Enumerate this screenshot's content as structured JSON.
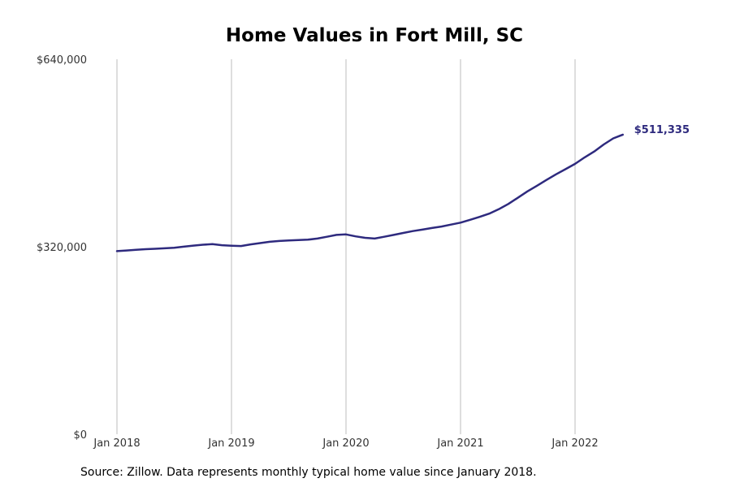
{
  "chart_data": {
    "type": "line",
    "title": "Home Values in Fort Mill, SC",
    "xlabel": "",
    "ylabel": "",
    "x_start": "2018-01",
    "ylim": [
      0,
      640000
    ],
    "yticks": [
      {
        "value": 0,
        "label": "$0"
      },
      {
        "value": 320000,
        "label": "$320,000"
      },
      {
        "value": 640000,
        "label": "$640,000"
      }
    ],
    "xticks": [
      {
        "index": 0,
        "label": "Jan 2018"
      },
      {
        "index": 12,
        "label": "Jan 2019"
      },
      {
        "index": 24,
        "label": "Jan 2020"
      },
      {
        "index": 36,
        "label": "Jan 2021"
      },
      {
        "index": 48,
        "label": "Jan 2022"
      }
    ],
    "grid": "vertical",
    "series": [
      {
        "color": "#2e2a7e",
        "end_label": "$511,335",
        "values": [
          312500,
          313600,
          314800,
          315800,
          316600,
          317400,
          318200,
          320200,
          322000,
          323500,
          324500,
          322700,
          321800,
          321200,
          324000,
          326200,
          328400,
          329800,
          330600,
          331500,
          332000,
          334000,
          337000,
          340200,
          341000,
          337800,
          335200,
          334000,
          337000,
          340200,
          343500,
          346800,
          349200,
          352000,
          354500,
          357800,
          361200,
          366000,
          371000,
          376500,
          384000,
          393000,
          403500,
          414500,
          424000,
          434000,
          443500,
          452500,
          461500,
          472500,
          482500,
          494500,
          505000,
          511335
        ]
      }
    ]
  },
  "source_note": "Source: Zillow. Data represents monthly typical home value since January 2018."
}
